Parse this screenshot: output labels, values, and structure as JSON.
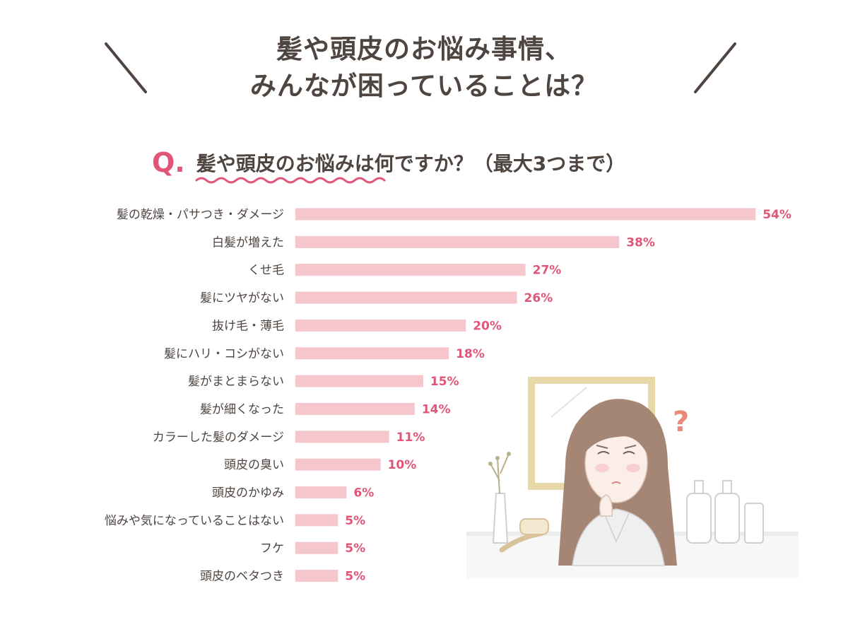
{
  "headline": {
    "line1": "髪や頭皮のお悩み事情、",
    "line2": "みんなが困っていることは？"
  },
  "question": {
    "mark": "Q.",
    "text": "髪や頭皮のお悩みは何ですか？（最大3つまで）"
  },
  "colors": {
    "bar": "#f6c6cd",
    "value": "#e05578",
    "text": "#4e4540"
  },
  "illustration": {
    "mark": "?"
  },
  "chart_data": {
    "type": "bar",
    "orientation": "horizontal",
    "title": "髪や頭皮のお悩みは何ですか？（最大3つまで）",
    "unit": "%",
    "categories": [
      "髪の乾燥・パサつき・ダメージ",
      "白髪が増えた",
      "くせ毛",
      "髪にツヤがない",
      "抜け毛・薄毛",
      "髪にハリ・コシがない",
      "髪がまとまらない",
      "髪が細くなった",
      "カラーした髪のダメージ",
      "頭皮の臭い",
      "頭皮のかゆみ",
      "悩みや気になっていることはない",
      "フケ",
      "頭皮のベタつき"
    ],
    "values": [
      54,
      38,
      27,
      26,
      20,
      18,
      15,
      14,
      11,
      10,
      6,
      5,
      5,
      5
    ],
    "value_labels": [
      "54%",
      "38%",
      "27%",
      "26%",
      "20%",
      "18%",
      "15%",
      "14%",
      "11%",
      "10%",
      "6%",
      "5%",
      "5%",
      "5%"
    ],
    "grid": false,
    "legend": "none"
  }
}
